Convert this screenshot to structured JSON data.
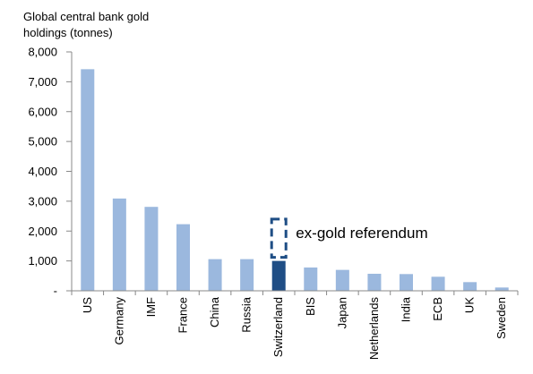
{
  "chart_data": {
    "type": "bar",
    "ylabel": [
      "Global central bank gold",
      "holdings (tonnes)"
    ],
    "ylim": [
      0,
      8000
    ],
    "yticks": [
      0,
      1000,
      2000,
      3000,
      4000,
      5000,
      6000,
      7000,
      8000
    ],
    "ytick_labels": [
      "-",
      "1,000",
      "2,000",
      "3,000",
      "4,000",
      "5,000",
      "6,000",
      "7,000",
      "8,000"
    ],
    "categories": [
      "US",
      "Germany",
      "IMF",
      "France",
      "China",
      "Russia",
      "Switzerland",
      "BIS",
      "Japan",
      "Netherlands",
      "India",
      "ECB",
      "UK",
      "Sweden"
    ],
    "values": [
      7420,
      3090,
      2810,
      2230,
      1060,
      1060,
      1000,
      780,
      700,
      570,
      560,
      470,
      290,
      110
    ],
    "highlight_index": 6,
    "annotation": {
      "text": "ex-gold referendum",
      "category": "Switzerland",
      "value_from": 1000,
      "value_to": 2400
    },
    "colors": {
      "bar": "#9bb8de",
      "highlight": "#1f4e85",
      "annotation_box": "#1f4e85",
      "axis": "#888888"
    },
    "grid": false,
    "legend": "none"
  }
}
